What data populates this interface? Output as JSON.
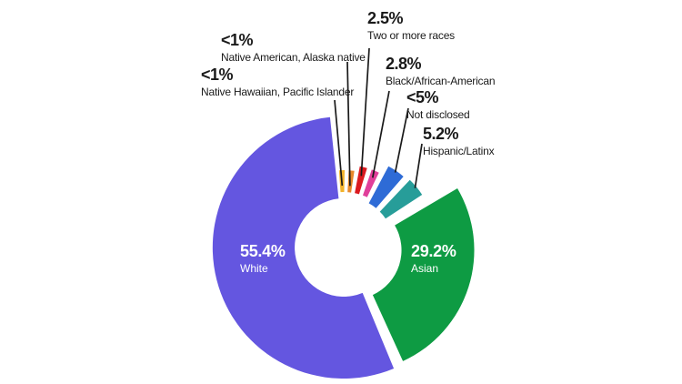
{
  "chart_data": {
    "type": "pie",
    "subtype": "donut",
    "exploded": true,
    "title": "",
    "legend_position": "callout-labels",
    "background": "#ffffff",
    "line_color": "#1a1a1a",
    "slices": [
      {
        "label": "Native Hawaiian, Pacific Islander",
        "pct_label": "<1%",
        "value": 0.9,
        "color": "#F2B32B"
      },
      {
        "label": "Native American, Alaska native",
        "pct_label": "<1%",
        "value": 0.9,
        "color": "#E8892B"
      },
      {
        "label": "Two or more races",
        "pct_label": "2.5%",
        "value": 2.5,
        "color": "#DB1A20"
      },
      {
        "label": "Black/African-American",
        "pct_label": "2.8%",
        "value": 2.8,
        "color": "#E03F9A"
      },
      {
        "label": "Not disclosed",
        "pct_label": "<5%",
        "value": 4.9,
        "color": "#2E6BD6"
      },
      {
        "label": "Hispanic/Latinx",
        "pct_label": "5.2%",
        "value": 5.2,
        "color": "#279D99"
      },
      {
        "label": "Asian",
        "pct_label": "29.2%",
        "value": 29.2,
        "color": "#0E9B43"
      },
      {
        "label": "White",
        "pct_label": "55.4%",
        "value": 55.4,
        "color": "#6456E0"
      }
    ]
  }
}
